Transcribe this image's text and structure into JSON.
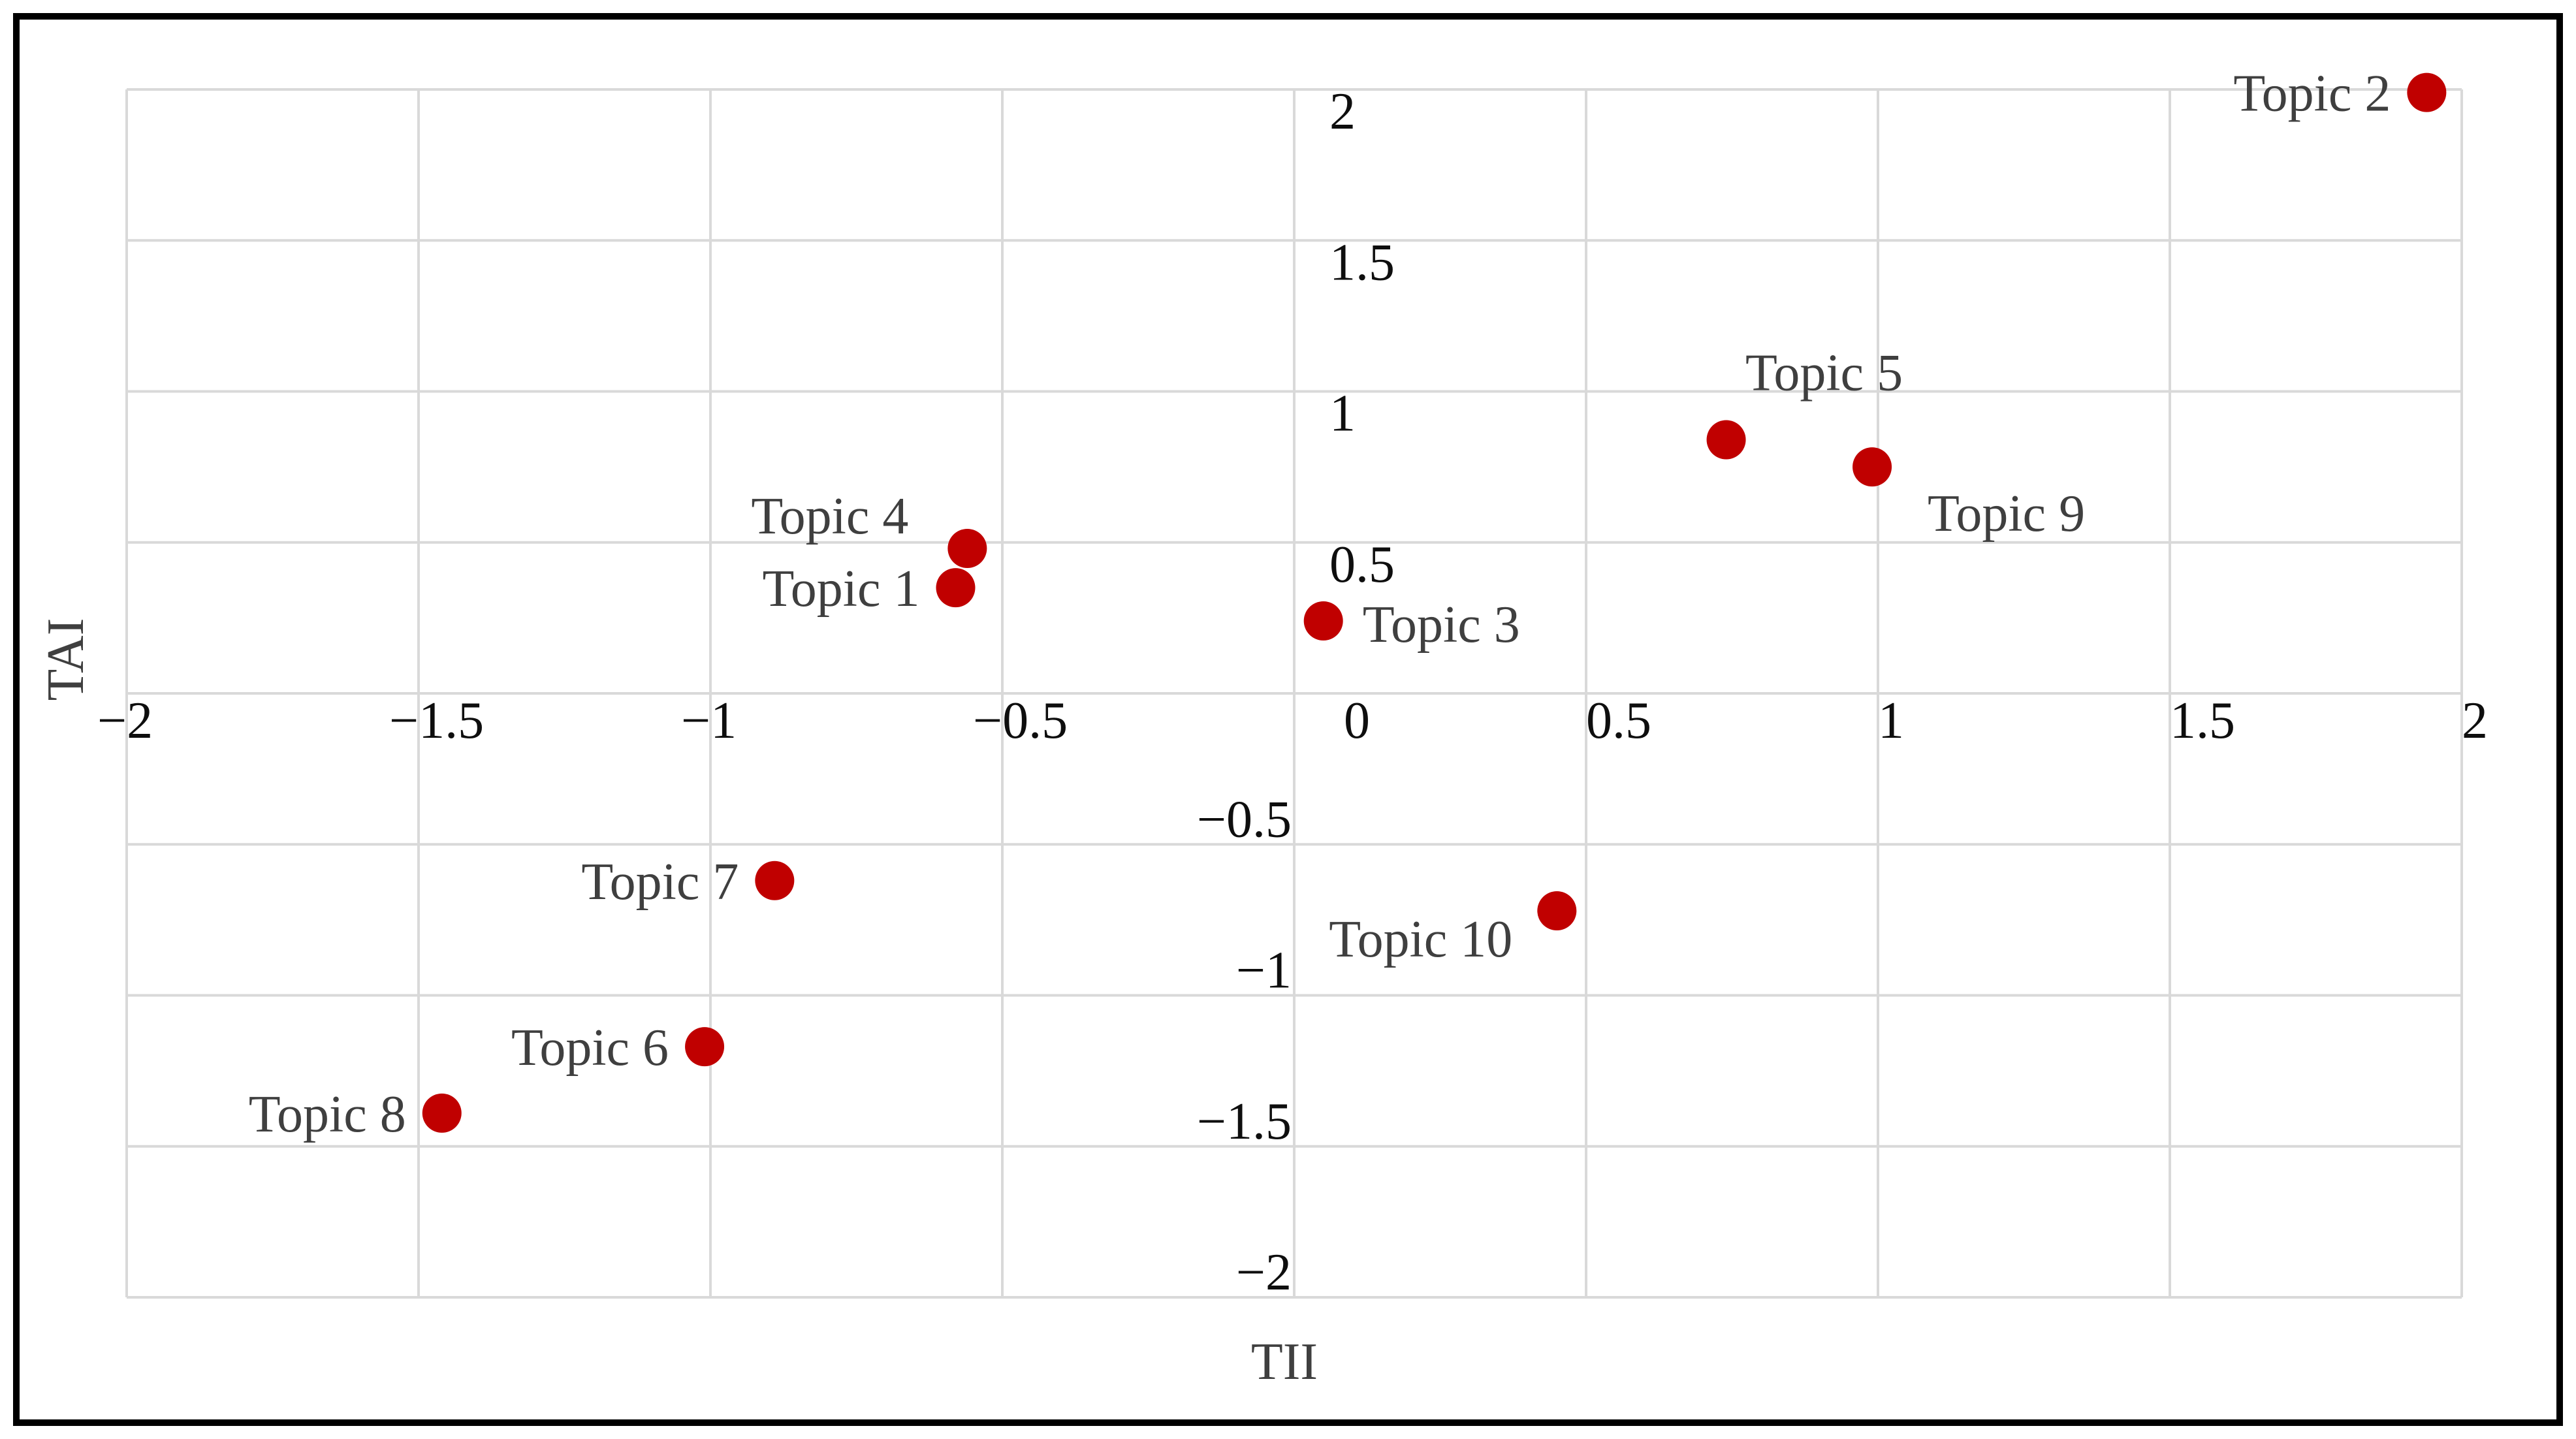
{
  "figure": {
    "background": "#ffffff",
    "border_color": "#000000"
  },
  "chart_data": {
    "type": "scatter",
    "title": "",
    "xlabel": "TII",
    "ylabel": "TAI",
    "xlim": [
      -2,
      2
    ],
    "ylim": [
      -2,
      2
    ],
    "grid": true,
    "gridline_step": 0.5,
    "legend": false,
    "marker_color": "#C00000",
    "grid_color": "#D9D9D9",
    "tick_color": "#0e0e0e",
    "label_color": "#3f3f3f",
    "x_gridlines": [
      -2,
      -1.5,
      -1,
      -0.5,
      0,
      0.5,
      1,
      1.5,
      2
    ],
    "y_gridlines": [
      -2,
      -1.5,
      -1,
      -0.5,
      0,
      0.5,
      1,
      1.5,
      2
    ],
    "x_ticks": [
      {
        "v": -2,
        "label": "−2"
      },
      {
        "v": -1.5,
        "label": "−1.5"
      },
      {
        "v": -1,
        "label": "−1"
      },
      {
        "v": -0.5,
        "label": "−0.5"
      },
      {
        "v": 0,
        "label": "0"
      },
      {
        "v": 0.5,
        "label": "0.5"
      },
      {
        "v": 1,
        "label": "1"
      },
      {
        "v": 1.5,
        "label": "1.5"
      },
      {
        "v": 2,
        "label": "2"
      }
    ],
    "y_ticks": [
      {
        "v": 2,
        "label": "2"
      },
      {
        "v": 1.5,
        "label": "1.5"
      },
      {
        "v": 1,
        "label": "1"
      },
      {
        "v": 0.5,
        "label": "0.5"
      },
      {
        "v": -0.5,
        "label": "−0.5"
      },
      {
        "v": -1,
        "label": "−1"
      },
      {
        "v": -1.5,
        "label": "−1.5"
      },
      {
        "v": -2,
        "label": "−2"
      }
    ],
    "points": [
      {
        "label": "Topic 1",
        "x": -0.58,
        "y": 0.35,
        "label_pos": "left"
      },
      {
        "label": "Topic 2",
        "x": 1.94,
        "y": 1.99,
        "label_pos": "left"
      },
      {
        "label": "Topic 3",
        "x": 0.05,
        "y": 0.24,
        "label_pos": "right"
      },
      {
        "label": "Topic 4",
        "x": -0.56,
        "y": 0.48,
        "label_pos": "above-left"
      },
      {
        "label": "Topic 5",
        "x": 0.74,
        "y": 0.84,
        "label_pos": "above-right"
      },
      {
        "label": "Topic 6",
        "x": -1.01,
        "y": -1.17,
        "label_pos": "left"
      },
      {
        "label": "Topic 7",
        "x": -0.89,
        "y": -0.62,
        "label_pos": "left"
      },
      {
        "label": "Topic 8",
        "x": -1.46,
        "y": -1.39,
        "label_pos": "left"
      },
      {
        "label": "Topic 9",
        "x": 0.99,
        "y": 0.75,
        "label_pos": "right-below"
      },
      {
        "label": "Topic 10",
        "x": 0.45,
        "y": -0.72,
        "label_pos": "left-below"
      }
    ]
  }
}
